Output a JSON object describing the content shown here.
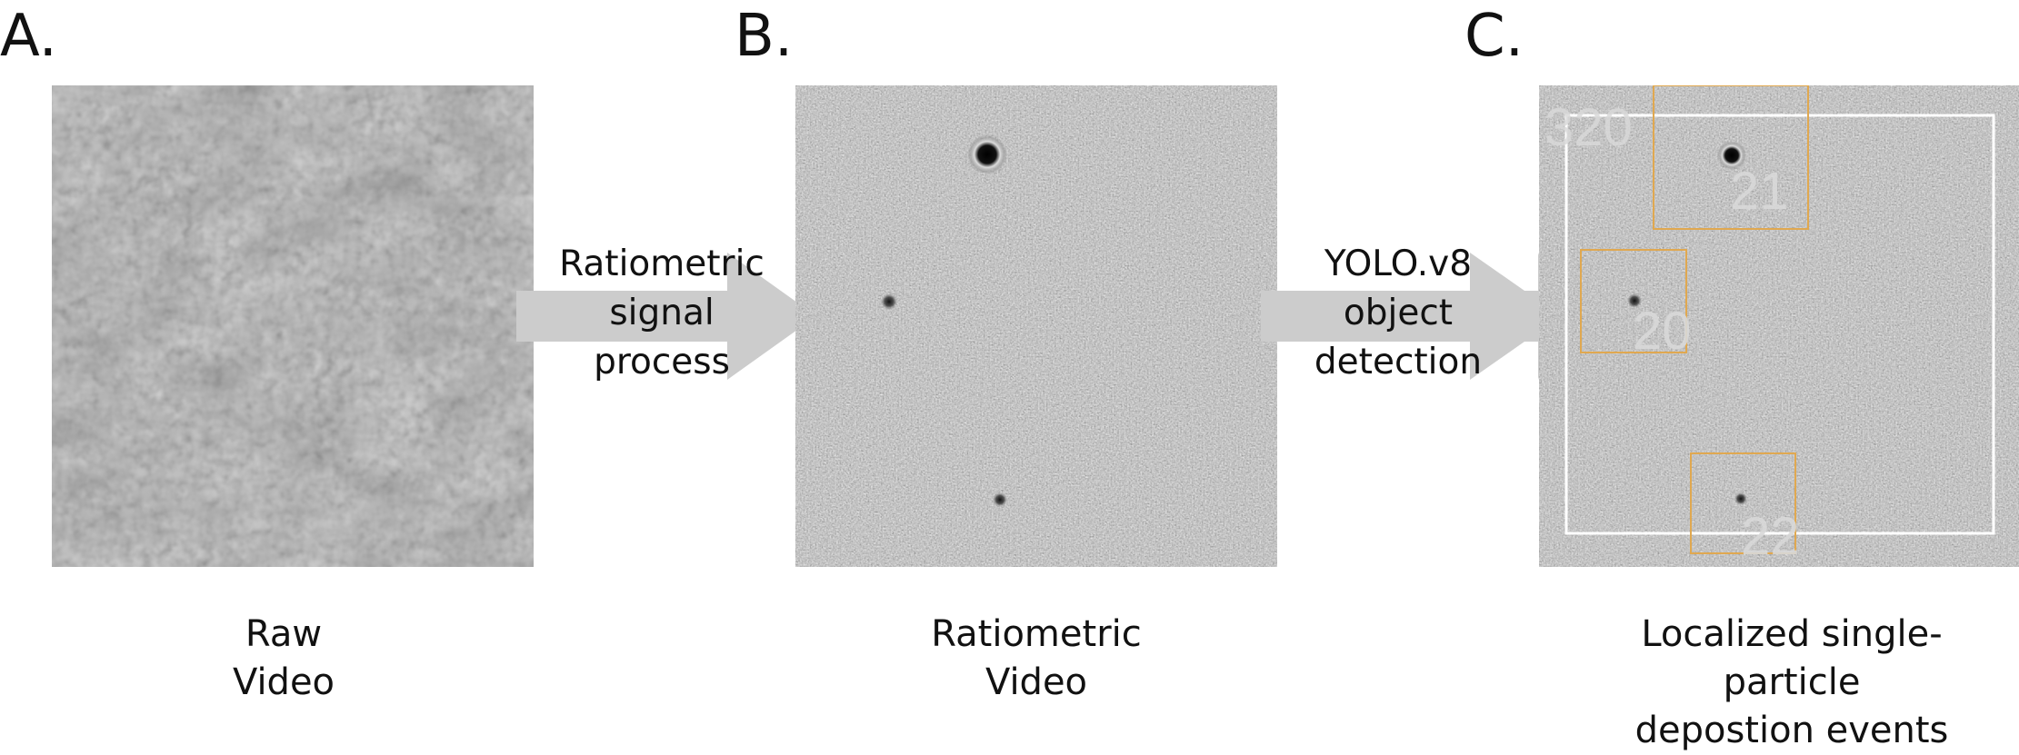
{
  "panels": [
    {
      "letter": "A.",
      "caption_line1": "Raw",
      "caption_line2": "Video"
    },
    {
      "letter": "B.",
      "caption_line1": "Ratiometric",
      "caption_line2": "Video"
    },
    {
      "letter": "C.",
      "caption_line1": "Localized single-particle",
      "caption_line2": "depostion events"
    }
  ],
  "arrows": [
    {
      "line1": "Ratiometric",
      "line2": "signal",
      "line3": "process"
    },
    {
      "line1": "YOLO.v8",
      "line2": "object",
      "line3": "detection"
    }
  ],
  "detection": {
    "frame_label": "320",
    "box_labels": [
      "21",
      "20",
      "22"
    ],
    "box_color": "#e0a850",
    "frame_color": "#ffffff"
  }
}
